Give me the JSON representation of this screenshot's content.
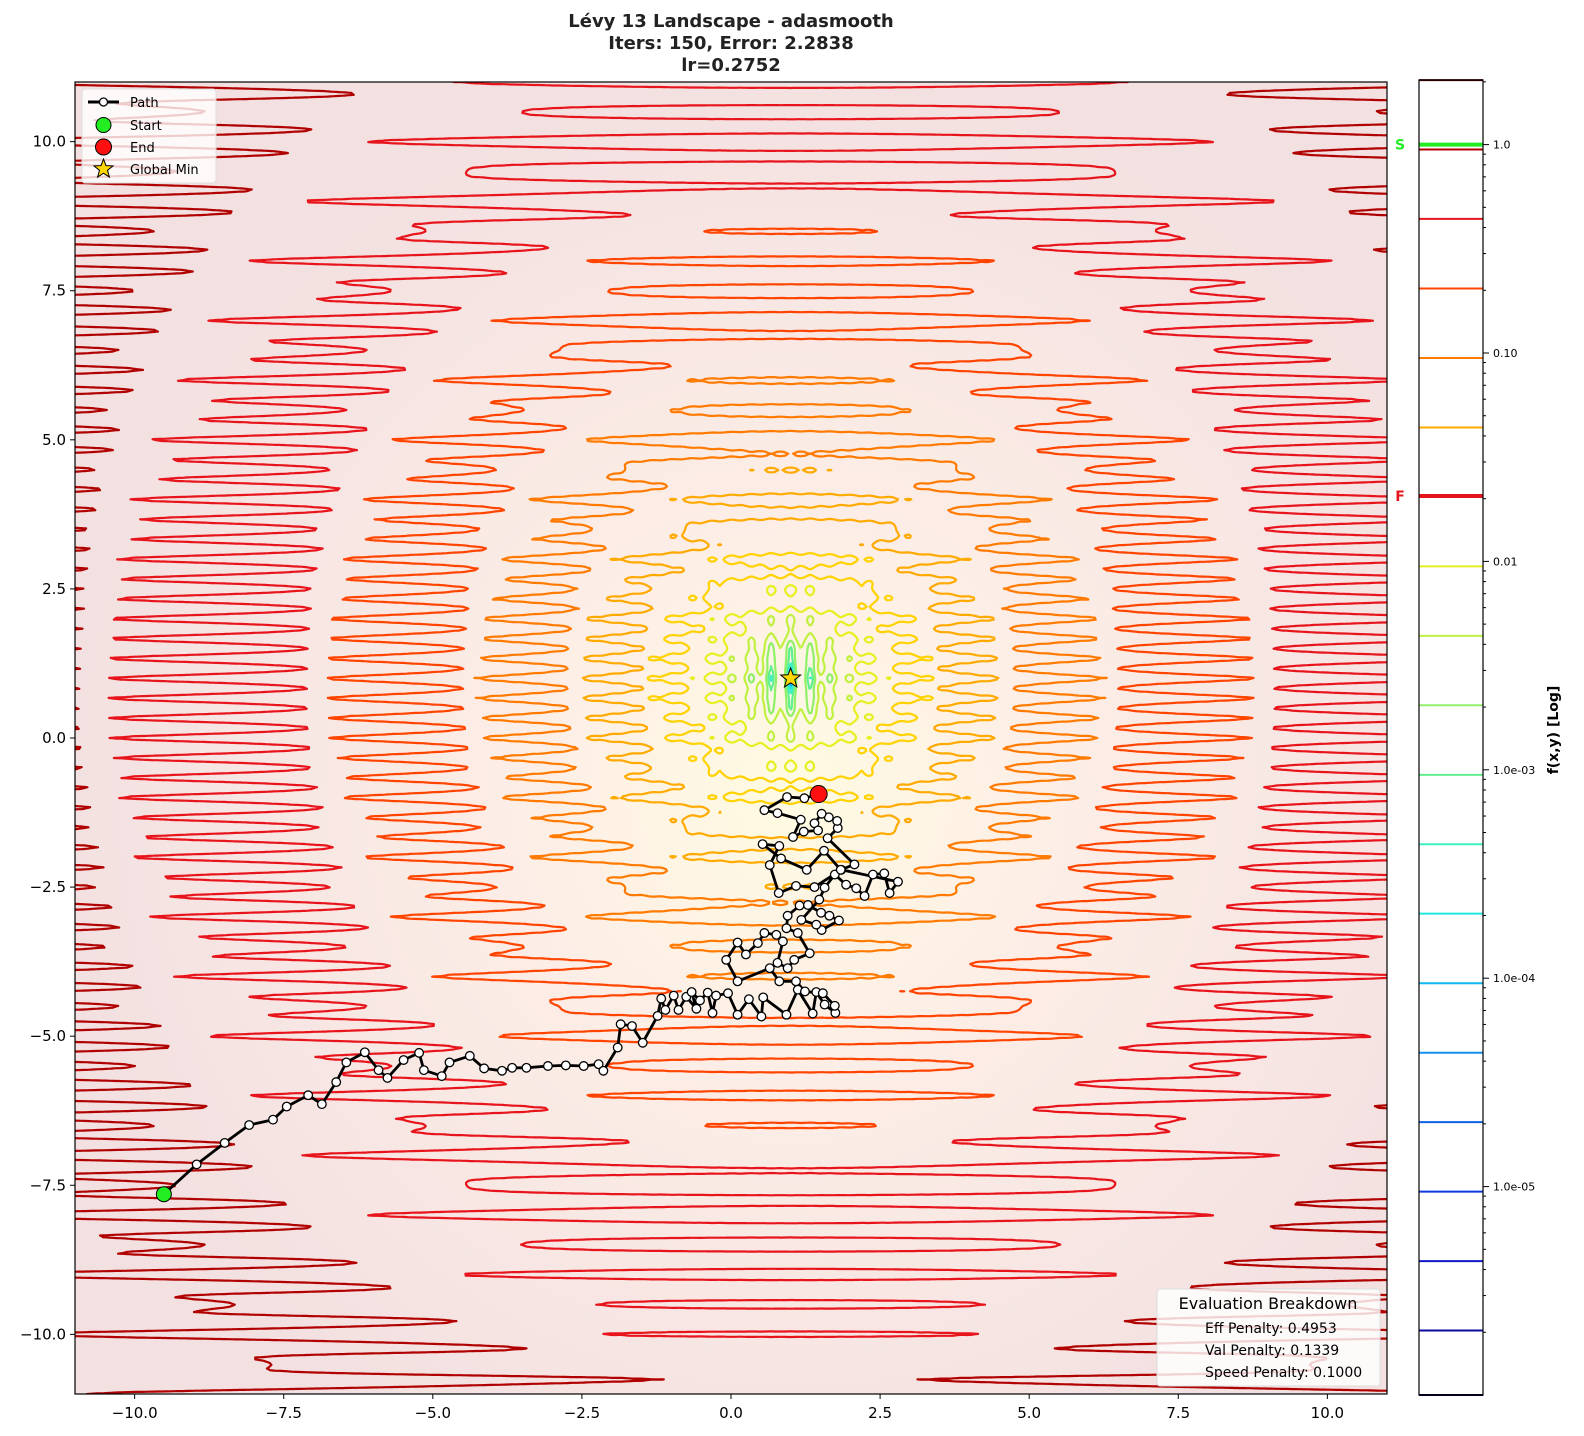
{
  "chart_data": {
    "type": "contour",
    "title_lines": [
      "Lévy 13 Landscape - adasmooth",
      "Iters: 150, Error: 2.2838",
      "lr=0.2752"
    ],
    "xlim": [
      -11,
      11
    ],
    "ylim": [
      -11,
      11
    ],
    "x_ticks": [
      -10,
      -7.5,
      -5,
      -2.5,
      0,
      2.5,
      5,
      7.5,
      10
    ],
    "x_tick_labels": [
      "−10.0",
      "−7.5",
      "−5.0",
      "−2.5",
      "0.0",
      "2.5",
      "5.0",
      "7.5",
      "10.0"
    ],
    "y_ticks": [
      10,
      7.5,
      5,
      2.5,
      0,
      -2.5,
      -5,
      -7.5,
      -10
    ],
    "y_tick_labels": [
      "10.0",
      "7.5",
      "5.0",
      "2.5",
      "0.0",
      "−2.5",
      "−5.0",
      "−7.5",
      "−10.0"
    ],
    "contour_levels": [
      2.04,
      0.947,
      0.44,
      0.204,
      0.0946,
      0.0439,
      0.0204,
      0.00946,
      0.00439,
      0.00204,
      0.000946,
      0.000439,
      0.000204,
      9.46e-05,
      4.39e-05,
      2.04e-05,
      9.46e-06,
      4.39e-06,
      2.04e-06,
      9.46e-07
    ],
    "contour_colors": [
      "#5a0000",
      "#b00000",
      "#e8141c",
      "#ff4400",
      "#ff7a00",
      "#ffaa00",
      "#ffd200",
      "#e6f020",
      "#c0f040",
      "#90f068",
      "#60f090",
      "#40f0c0",
      "#20e8e0",
      "#10b8f0",
      "#1090f0",
      "#1060e8",
      "#1038e0",
      "#1018c8",
      "#0a0aa0",
      "#000040"
    ],
    "colorbar": {
      "label": "f(x,y) [Log]",
      "log_range": [
        -6.0,
        0.31
      ],
      "ticks": [
        1.0,
        0.1,
        0.01,
        0.001,
        0.0001,
        1e-05
      ],
      "tick_labels": [
        "1.0",
        "0.10",
        "0.01",
        "1.0e-03",
        "1.0e-04",
        "1.0e-05"
      ],
      "markers": [
        {
          "label": "S",
          "value": 1.0,
          "color": "#22ee22"
        },
        {
          "label": "F",
          "value": 0.0206,
          "color": "#e8141c"
        }
      ]
    },
    "path": [
      [
        -9.51,
        -7.65
      ],
      [
        -8.96,
        -7.15
      ],
      [
        -8.49,
        -6.79
      ],
      [
        -8.08,
        -6.49
      ],
      [
        -7.68,
        -6.4
      ],
      [
        -7.45,
        -6.18
      ],
      [
        -7.09,
        -5.99
      ],
      [
        -6.86,
        -6.14
      ],
      [
        -6.62,
        -5.77
      ],
      [
        -6.45,
        -5.44
      ],
      [
        -6.14,
        -5.27
      ],
      [
        -5.91,
        -5.57
      ],
      [
        -5.76,
        -5.7
      ],
      [
        -5.49,
        -5.4
      ],
      [
        -5.23,
        -5.28
      ],
      [
        -5.15,
        -5.57
      ],
      [
        -4.85,
        -5.67
      ],
      [
        -4.72,
        -5.44
      ],
      [
        -4.38,
        -5.33
      ],
      [
        -4.14,
        -5.54
      ],
      [
        -3.84,
        -5.58
      ],
      [
        -3.67,
        -5.53
      ],
      [
        -3.43,
        -5.53
      ],
      [
        -3.07,
        -5.5
      ],
      [
        -2.77,
        -5.49
      ],
      [
        -2.47,
        -5.5
      ],
      [
        -2.22,
        -5.47
      ],
      [
        -2.14,
        -5.58
      ],
      [
        -1.9,
        -5.19
      ],
      [
        -1.85,
        -4.8
      ],
      [
        -1.66,
        -4.83
      ],
      [
        -1.48,
        -5.11
      ],
      [
        -1.23,
        -4.66
      ],
      [
        -1.17,
        -4.37
      ],
      [
        -1.1,
        -4.56
      ],
      [
        -0.96,
        -4.32
      ],
      [
        -0.88,
        -4.56
      ],
      [
        -0.75,
        -4.34
      ],
      [
        -0.58,
        -4.54
      ],
      [
        -0.66,
        -4.26
      ],
      [
        -0.52,
        -4.4
      ],
      [
        -0.39,
        -4.27
      ],
      [
        -0.31,
        -4.61
      ],
      [
        -0.25,
        -4.32
      ],
      [
        -0.05,
        -4.28
      ],
      [
        0.11,
        -4.64
      ],
      [
        0.3,
        -4.38
      ],
      [
        0.51,
        -4.67
      ],
      [
        0.54,
        -4.35
      ],
      [
        0.93,
        -4.64
      ],
      [
        1.12,
        -4.22
      ],
      [
        1.37,
        -4.62
      ],
      [
        1.43,
        -4.26
      ],
      [
        1.57,
        -4.47
      ],
      [
        1.75,
        -4.61
      ],
      [
        1.74,
        -4.49
      ],
      [
        1.54,
        -4.28
      ],
      [
        1.24,
        -4.25
      ],
      [
        1.09,
        -4.08
      ],
      [
        0.81,
        -4.08
      ],
      [
        0.65,
        -3.86
      ],
      [
        0.11,
        -4.08
      ],
      [
        -0.08,
        -3.72
      ],
      [
        0.11,
        -3.43
      ],
      [
        0.25,
        -3.63
      ],
      [
        0.45,
        -3.44
      ],
      [
        0.56,
        -3.27
      ],
      [
        0.76,
        -3.3
      ],
      [
        0.87,
        -3.41
      ],
      [
        0.78,
        -3.77
      ],
      [
        0.95,
        -3.86
      ],
      [
        1.06,
        -3.72
      ],
      [
        1.32,
        -3.61
      ],
      [
        1.12,
        -3.27
      ],
      [
        0.93,
        -3.19
      ],
      [
        0.95,
        -2.98
      ],
      [
        1.15,
        -2.81
      ],
      [
        1.29,
        -2.8
      ],
      [
        1.51,
        -2.93
      ],
      [
        1.65,
        -2.98
      ],
      [
        1.81,
        -3.06
      ],
      [
        1.52,
        -3.22
      ],
      [
        1.43,
        -3.13
      ],
      [
        1.18,
        -3.05
      ],
      [
        1.48,
        -2.71
      ],
      [
        1.57,
        -2.51
      ],
      [
        1.74,
        -2.29
      ],
      [
        1.93,
        -2.46
      ],
      [
        2.1,
        -2.52
      ],
      [
        2.24,
        -2.65
      ],
      [
        2.38,
        -2.29
      ],
      [
        2.57,
        -2.27
      ],
      [
        2.66,
        -2.6
      ],
      [
        2.8,
        -2.41
      ],
      [
        1.85,
        -2.21
      ],
      [
        1.4,
        -2.5
      ],
      [
        1.09,
        -2.48
      ],
      [
        0.8,
        -2.6
      ],
      [
        0.65,
        -2.13
      ],
      [
        0.81,
        -1.81
      ],
      [
        0.53,
        -1.78
      ],
      [
        0.84,
        -2.02
      ],
      [
        1.27,
        -2.21
      ],
      [
        1.56,
        -1.89
      ],
      [
        1.84,
        -2.21
      ],
      [
        2.07,
        -2.12
      ],
      [
        1.62,
        -1.68
      ],
      [
        1.79,
        -1.51
      ],
      [
        1.78,
        -1.39
      ],
      [
        1.64,
        -1.33
      ],
      [
        1.52,
        -1.27
      ],
      [
        1.4,
        -1.43
      ],
      [
        1.46,
        -1.55
      ],
      [
        1.22,
        -1.57
      ],
      [
        1.04,
        -1.66
      ],
      [
        1.17,
        -1.37
      ],
      [
        0.78,
        -1.26
      ],
      [
        0.56,
        -1.21
      ],
      [
        0.94,
        -0.99
      ],
      [
        1.23,
        -1.01
      ],
      [
        1.47,
        -0.94
      ]
    ],
    "start": [
      -9.51,
      -7.65
    ],
    "end": [
      1.47,
      -0.94
    ],
    "global_min": [
      1.0,
      1.0
    ],
    "legend": {
      "placement": "top-left",
      "entries": [
        "Path",
        "Start",
        "End",
        "Global Min"
      ]
    },
    "evaluation": {
      "title": "Evaluation Breakdown",
      "lines": [
        "Eff Penalty: 0.4953",
        "Val Penalty: 0.1339",
        "Speed Penalty: 0.1000"
      ]
    }
  }
}
